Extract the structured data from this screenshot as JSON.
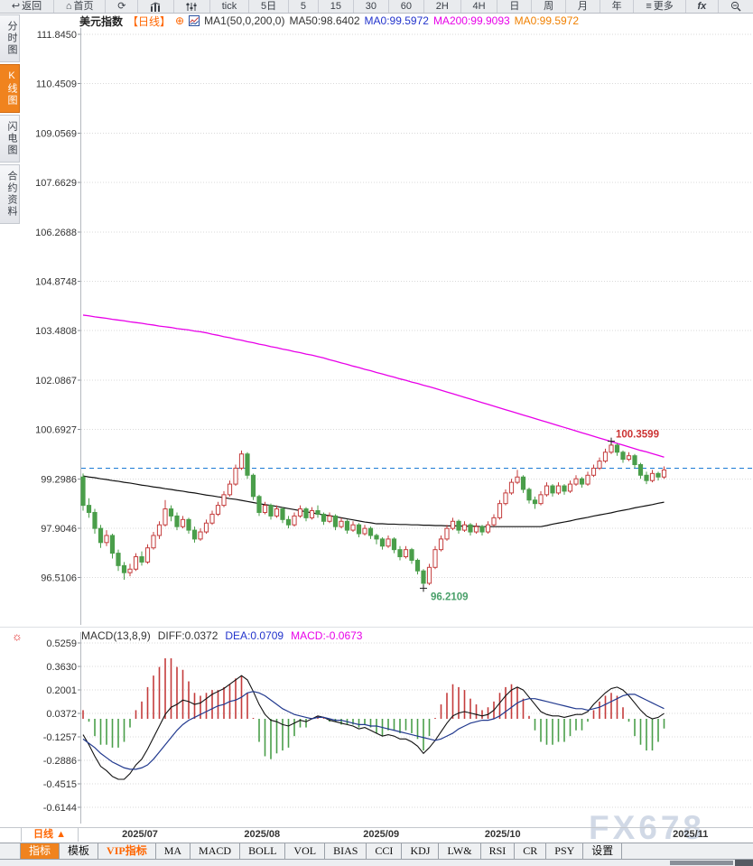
{
  "toolbar": {
    "back_label": "返回",
    "home_label": "首页",
    "tick_label": "tick",
    "periods": [
      "5日",
      "5",
      "15",
      "30",
      "60",
      "2H",
      "4H",
      "日",
      "周",
      "月",
      "年"
    ],
    "more_label": "更多",
    "fx_label": "fx"
  },
  "sidebar": {
    "items": [
      {
        "label": "分时图"
      },
      {
        "label": "K线图"
      },
      {
        "label": "闪电图"
      },
      {
        "label": "合约资料"
      }
    ]
  },
  "chart_header": {
    "symbol": "美元指数",
    "period_tag": "【日线】",
    "plus": "⊕",
    "ma_settings": "MA1(50,0,200,0)",
    "ma50": "MA50:98.6402",
    "ma0_blue": "MA0:99.5972",
    "ma200": "MA200:99.9093",
    "ma0_orange": "MA0:99.5972"
  },
  "macd_header": {
    "title": "MACD(13,8,9)",
    "diff": "DIFF:0.0372",
    "dea": "DEA:0.0709",
    "macd": "MACD:-0.0673"
  },
  "bottom": {
    "period_button": "日线 ▲",
    "tabs": [
      {
        "label": "指标"
      },
      {
        "label": "模板"
      },
      {
        "label": "VIP指标"
      },
      {
        "label": "MA"
      },
      {
        "label": "MACD"
      },
      {
        "label": "BOLL"
      },
      {
        "label": "VOL"
      },
      {
        "label": "BIAS"
      },
      {
        "label": "CCI"
      },
      {
        "label": "KDJ"
      },
      {
        "label": "LW&"
      },
      {
        "label": "RSI"
      },
      {
        "label": "CR"
      },
      {
        "label": "PSY"
      },
      {
        "label": "设置"
      }
    ]
  },
  "watermark": "FX678",
  "chart_data": {
    "type": "candlestick+macd",
    "title": "美元指数 日线 (US Dollar Index, daily)",
    "y_axis_labels": [
      "111.8450",
      "110.4509",
      "109.0569",
      "107.6629",
      "106.2688",
      "104.8748",
      "103.4808",
      "102.0867",
      "100.6927",
      "99.2986",
      "97.9046",
      "96.5106"
    ],
    "x_ticks": [
      {
        "label": "2025/07",
        "index": 9.7
      },
      {
        "label": "2025/08",
        "index": 30.5
      },
      {
        "label": "2025/09",
        "index": 50.8
      },
      {
        "label": "2025/10",
        "index": 71.5
      },
      {
        "label": "2025/11",
        "index": 103.5
      }
    ],
    "current_price": 99.5972,
    "high_marker": {
      "value": "100.3599",
      "index": 90
    },
    "low_marker": {
      "value": "96.2109",
      "index": 58
    },
    "candles": [
      [
        99.35,
        99.45,
        98.4,
        98.55
      ],
      [
        98.55,
        98.75,
        98.2,
        98.35
      ],
      [
        98.35,
        98.45,
        97.75,
        97.9
      ],
      [
        97.9,
        98.0,
        97.35,
        97.5
      ],
      [
        97.5,
        97.85,
        97.4,
        97.7
      ],
      [
        97.7,
        97.75,
        97.05,
        97.2
      ],
      [
        97.2,
        97.3,
        96.7,
        96.85
      ],
      [
        96.85,
        96.95,
        96.45,
        96.65
      ],
      [
        96.65,
        96.9,
        96.55,
        96.75
      ],
      [
        96.75,
        97.2,
        96.7,
        97.1
      ],
      [
        97.1,
        97.25,
        96.85,
        96.95
      ],
      [
        96.95,
        97.45,
        96.9,
        97.35
      ],
      [
        97.35,
        97.8,
        97.3,
        97.7
      ],
      [
        97.7,
        98.1,
        97.6,
        98.0
      ],
      [
        98.0,
        98.7,
        97.95,
        98.45
      ],
      [
        98.45,
        98.55,
        98.1,
        98.25
      ],
      [
        98.25,
        98.35,
        97.85,
        97.95
      ],
      [
        97.95,
        98.25,
        97.9,
        98.15
      ],
      [
        98.15,
        98.2,
        97.75,
        97.85
      ],
      [
        97.85,
        97.95,
        97.5,
        97.6
      ],
      [
        97.6,
        97.9,
        97.55,
        97.8
      ],
      [
        97.8,
        98.15,
        97.75,
        98.05
      ],
      [
        98.05,
        98.4,
        98.0,
        98.3
      ],
      [
        98.3,
        98.65,
        98.25,
        98.55
      ],
      [
        98.55,
        98.95,
        98.5,
        98.85
      ],
      [
        98.85,
        99.25,
        98.8,
        99.15
      ],
      [
        99.15,
        99.7,
        99.1,
        99.6
      ],
      [
        99.6,
        100.1,
        99.55,
        100.0
      ],
      [
        100.0,
        100.05,
        99.3,
        99.4
      ],
      [
        99.4,
        99.45,
        98.7,
        98.8
      ],
      [
        98.8,
        98.85,
        98.25,
        98.35
      ],
      [
        98.35,
        98.65,
        98.3,
        98.55
      ],
      [
        98.55,
        98.6,
        98.15,
        98.25
      ],
      [
        98.25,
        98.55,
        98.2,
        98.45
      ],
      [
        98.45,
        98.5,
        98.05,
        98.15
      ],
      [
        98.15,
        98.25,
        97.9,
        98.0
      ],
      [
        98.0,
        98.35,
        97.95,
        98.25
      ],
      [
        98.25,
        98.55,
        98.2,
        98.45
      ],
      [
        98.45,
        98.5,
        98.1,
        98.2
      ],
      [
        98.2,
        98.5,
        98.15,
        98.4
      ],
      [
        98.4,
        98.55,
        98.2,
        98.3
      ],
      [
        98.3,
        98.35,
        98.0,
        98.1
      ],
      [
        98.1,
        98.35,
        98.05,
        98.25
      ],
      [
        98.25,
        98.3,
        97.85,
        97.95
      ],
      [
        97.95,
        98.2,
        97.9,
        98.1
      ],
      [
        98.1,
        98.15,
        97.75,
        97.85
      ],
      [
        97.85,
        98.1,
        97.8,
        98.0
      ],
      [
        98.0,
        98.05,
        97.65,
        97.75
      ],
      [
        97.75,
        98.0,
        97.7,
        97.9
      ],
      [
        97.9,
        97.95,
        97.6,
        97.7
      ],
      [
        97.7,
        97.75,
        97.45,
        97.6
      ],
      [
        97.6,
        97.65,
        97.3,
        97.4
      ],
      [
        97.4,
        97.7,
        97.35,
        97.6
      ],
      [
        97.6,
        97.65,
        97.2,
        97.3
      ],
      [
        97.3,
        97.4,
        97.0,
        97.1
      ],
      [
        97.1,
        97.4,
        97.05,
        97.3
      ],
      [
        97.3,
        97.35,
        96.9,
        97.0
      ],
      [
        97.0,
        97.05,
        96.6,
        96.7
      ],
      [
        96.7,
        96.75,
        96.21,
        96.35
      ],
      [
        96.35,
        96.9,
        96.3,
        96.8
      ],
      [
        96.8,
        97.4,
        96.75,
        97.3
      ],
      [
        97.3,
        97.7,
        97.25,
        97.6
      ],
      [
        97.6,
        98.0,
        97.55,
        97.9
      ],
      [
        97.9,
        98.2,
        97.85,
        98.1
      ],
      [
        98.1,
        98.15,
        97.75,
        97.85
      ],
      [
        97.85,
        98.1,
        97.8,
        98.0
      ],
      [
        98.0,
        98.05,
        97.7,
        97.8
      ],
      [
        97.8,
        98.05,
        97.75,
        97.95
      ],
      [
        97.95,
        98.0,
        97.7,
        97.8
      ],
      [
        97.8,
        98.1,
        97.75,
        98.0
      ],
      [
        98.0,
        98.3,
        97.95,
        98.2
      ],
      [
        98.2,
        98.7,
        98.15,
        98.6
      ],
      [
        98.6,
        99.0,
        98.55,
        98.9
      ],
      [
        98.9,
        99.3,
        98.85,
        99.2
      ],
      [
        99.2,
        99.55,
        99.15,
        99.35
      ],
      [
        99.35,
        99.4,
        98.9,
        99.0
      ],
      [
        99.0,
        99.05,
        98.6,
        98.7
      ],
      [
        98.7,
        98.8,
        98.45,
        98.6
      ],
      [
        98.6,
        98.95,
        98.55,
        98.85
      ],
      [
        98.85,
        99.2,
        98.8,
        99.1
      ],
      [
        99.1,
        99.15,
        98.8,
        98.9
      ],
      [
        98.9,
        99.2,
        98.85,
        99.1
      ],
      [
        99.1,
        99.15,
        98.85,
        98.95
      ],
      [
        98.95,
        99.25,
        98.9,
        99.15
      ],
      [
        99.15,
        99.4,
        99.1,
        99.3
      ],
      [
        99.3,
        99.35,
        99.05,
        99.15
      ],
      [
        99.15,
        99.5,
        99.1,
        99.4
      ],
      [
        99.4,
        99.7,
        99.35,
        99.6
      ],
      [
        99.6,
        99.9,
        99.55,
        99.8
      ],
      [
        99.8,
        100.15,
        99.75,
        100.05
      ],
      [
        100.05,
        100.36,
        100.0,
        100.25
      ],
      [
        100.25,
        100.3,
        99.95,
        100.05
      ],
      [
        100.05,
        100.1,
        99.75,
        99.85
      ],
      [
        99.85,
        100.05,
        99.8,
        99.95
      ],
      [
        99.95,
        100.0,
        99.6,
        99.7
      ],
      [
        99.7,
        99.75,
        99.3,
        99.4
      ],
      [
        99.4,
        99.5,
        99.15,
        99.25
      ],
      [
        99.25,
        99.55,
        99.2,
        99.45
      ],
      [
        99.45,
        99.5,
        99.25,
        99.35
      ],
      [
        99.35,
        99.65,
        99.3,
        99.55
      ]
    ],
    "ma50": [
      99.38,
      99.35,
      99.33,
      99.3,
      99.28,
      99.25,
      99.23,
      99.2,
      99.18,
      99.15,
      99.12,
      99.1,
      99.07,
      99.05,
      99.02,
      99.0,
      98.97,
      98.95,
      98.92,
      98.9,
      98.87,
      98.84,
      98.82,
      98.79,
      98.77,
      98.74,
      98.72,
      98.69,
      98.66,
      98.63,
      98.6,
      98.57,
      98.55,
      98.52,
      98.49,
      98.46,
      98.43,
      98.4,
      98.37,
      98.34,
      98.31,
      98.28,
      98.26,
      98.23,
      98.2,
      98.17,
      98.14,
      98.11,
      98.08,
      98.06,
      98.03,
      98.03,
      98.02,
      98.02,
      98.01,
      98.01,
      98.0,
      98.0,
      97.99,
      97.99,
      97.98,
      97.98,
      97.97,
      97.97,
      97.97,
      97.96,
      97.96,
      97.96,
      97.95,
      97.95,
      97.95,
      97.95,
      97.95,
      97.95,
      97.95,
      97.95,
      97.95,
      97.95,
      97.95,
      97.98,
      98.02,
      98.05,
      98.08,
      98.11,
      98.15,
      98.18,
      98.21,
      98.25,
      98.28,
      98.31,
      98.34,
      98.38,
      98.41,
      98.44,
      98.48,
      98.51,
      98.54,
      98.57,
      98.61,
      98.64
    ],
    "ma200": [
      103.92,
      103.9,
      103.87,
      103.85,
      103.83,
      103.8,
      103.78,
      103.76,
      103.73,
      103.71,
      103.69,
      103.66,
      103.64,
      103.61,
      103.59,
      103.57,
      103.54,
      103.52,
      103.5,
      103.47,
      103.45,
      103.42,
      103.38,
      103.35,
      103.31,
      103.28,
      103.24,
      103.21,
      103.17,
      103.14,
      103.1,
      103.07,
      103.03,
      103.0,
      102.96,
      102.93,
      102.89,
      102.86,
      102.82,
      102.79,
      102.75,
      102.71,
      102.66,
      102.62,
      102.57,
      102.53,
      102.48,
      102.44,
      102.39,
      102.35,
      102.3,
      102.26,
      102.21,
      102.17,
      102.12,
      102.08,
      102.03,
      101.99,
      101.94,
      101.9,
      101.85,
      101.8,
      101.75,
      101.7,
      101.65,
      101.6,
      101.55,
      101.5,
      101.45,
      101.4,
      101.35,
      101.3,
      101.25,
      101.2,
      101.15,
      101.1,
      101.05,
      101.0,
      100.95,
      100.9,
      100.85,
      100.8,
      100.75,
      100.7,
      100.65,
      100.6,
      100.55,
      100.5,
      100.45,
      100.4,
      100.35,
      100.3,
      100.25,
      100.2,
      100.15,
      100.1,
      100.06,
      100.01,
      99.96,
      99.91
    ],
    "macd": {
      "y_axis_labels": [
        "0.5259",
        "0.3630",
        "0.2001",
        "0.0372",
        "-0.1257",
        "-0.2886",
        "-0.4515",
        "-0.6144"
      ],
      "diff": [
        -0.11,
        -0.18,
        -0.26,
        -0.33,
        -0.36,
        -0.4,
        -0.42,
        -0.42,
        -0.38,
        -0.32,
        -0.28,
        -0.21,
        -0.13,
        -0.05,
        0.03,
        0.08,
        0.1,
        0.13,
        0.12,
        0.1,
        0.11,
        0.14,
        0.17,
        0.19,
        0.21,
        0.24,
        0.27,
        0.3,
        0.27,
        0.19,
        0.1,
        0.03,
        -0.01,
        -0.02,
        -0.04,
        -0.05,
        -0.03,
        -0.01,
        -0.02,
        0.0,
        0.02,
        0.01,
        -0.01,
        -0.02,
        -0.03,
        -0.04,
        -0.05,
        -0.07,
        -0.06,
        -0.08,
        -0.1,
        -0.12,
        -0.11,
        -0.12,
        -0.14,
        -0.14,
        -0.16,
        -0.19,
        -0.24,
        -0.2,
        -0.15,
        -0.09,
        -0.03,
        0.02,
        0.04,
        0.05,
        0.04,
        0.03,
        0.02,
        0.03,
        0.06,
        0.11,
        0.16,
        0.2,
        0.22,
        0.2,
        0.15,
        0.1,
        0.05,
        0.03,
        0.02,
        0.02,
        0.01,
        0.02,
        0.03,
        0.03,
        0.05,
        0.1,
        0.14,
        0.18,
        0.21,
        0.22,
        0.2,
        0.16,
        0.11,
        0.06,
        0.02,
        0.0,
        0.01,
        0.0372
      ],
      "dea": [
        -0.14,
        -0.17,
        -0.2,
        -0.24,
        -0.27,
        -0.3,
        -0.32,
        -0.34,
        -0.35,
        -0.35,
        -0.34,
        -0.32,
        -0.28,
        -0.23,
        -0.18,
        -0.13,
        -0.08,
        -0.04,
        -0.01,
        0.01,
        0.03,
        0.05,
        0.07,
        0.09,
        0.1,
        0.12,
        0.13,
        0.15,
        0.18,
        0.19,
        0.18,
        0.16,
        0.13,
        0.1,
        0.07,
        0.05,
        0.03,
        0.02,
        0.01,
        0.0,
        0.01,
        0.01,
        0.0,
        -0.01,
        -0.01,
        -0.02,
        -0.03,
        -0.04,
        -0.04,
        -0.05,
        -0.05,
        -0.06,
        -0.07,
        -0.08,
        -0.09,
        -0.1,
        -0.11,
        -0.12,
        -0.13,
        -0.14,
        -0.15,
        -0.14,
        -0.12,
        -0.1,
        -0.07,
        -0.05,
        -0.03,
        -0.02,
        -0.01,
        -0.01,
        0.0,
        0.02,
        0.05,
        0.08,
        0.11,
        0.13,
        0.14,
        0.14,
        0.13,
        0.12,
        0.11,
        0.1,
        0.09,
        0.08,
        0.07,
        0.07,
        0.06,
        0.07,
        0.08,
        0.1,
        0.12,
        0.14,
        0.16,
        0.17,
        0.17,
        0.15,
        0.13,
        0.11,
        0.09,
        0.0709
      ]
    },
    "colors": {
      "up": "#c43c3c",
      "down": "#4a9e4a",
      "ma50": "#111111",
      "ma200": "#e800e8",
      "dea": "#223a8f",
      "diff": "#111111",
      "price_line": "#1a7ad4",
      "grid": "#d9d9d9",
      "axis": "#b5b9bf",
      "high_label": "#cc3333",
      "low_label": "#4aa06a"
    }
  }
}
